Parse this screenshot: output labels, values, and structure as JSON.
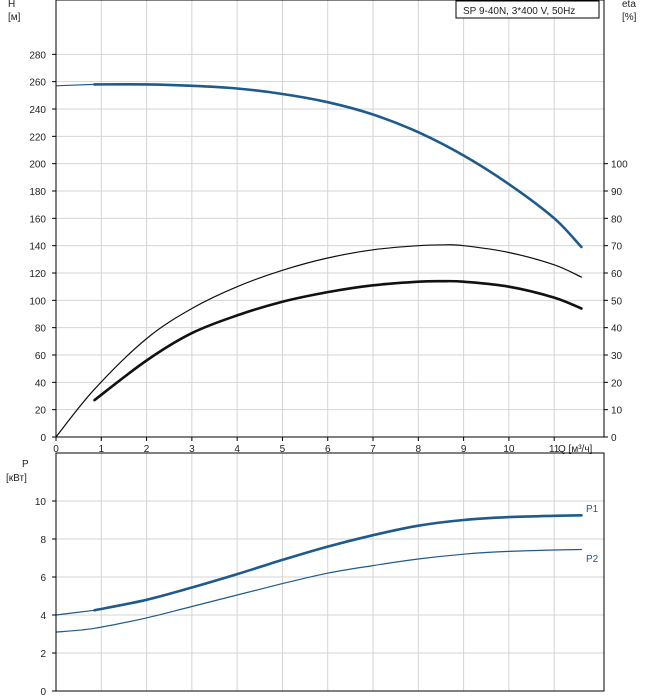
{
  "chart_data": [
    {
      "type": "line",
      "id": "head_efficiency",
      "title": "SP 9-40N, 3*400 V, 50Hz",
      "xlabel": "Q [м³/ч]",
      "ylabel": "H",
      "ylabel_unit": "[м]",
      "y2label": "eta",
      "y2label_unit": "[%]",
      "xlim": [
        0,
        12.1
      ],
      "ylim": [
        0,
        300
      ],
      "y2lim": [
        0,
        150
      ],
      "x_ticks": [
        0,
        1,
        2,
        3,
        4,
        5,
        6,
        7,
        8,
        9,
        10,
        11
      ],
      "y_ticks": [
        0,
        20,
        40,
        60,
        80,
        100,
        120,
        140,
        160,
        180,
        200,
        220,
        240,
        260,
        280
      ],
      "y2_ticks": [
        0,
        10,
        20,
        30,
        40,
        50,
        60,
        70,
        80,
        90,
        100
      ],
      "grid": true,
      "series": [
        {
          "key": "head_extension",
          "axis": "left",
          "color": "#1f5a8c",
          "line": "thin",
          "x": [
            0,
            0.85
          ],
          "y": [
            257,
            258
          ]
        },
        {
          "key": "head",
          "axis": "left",
          "color": "#1f5a8c",
          "line": "thick",
          "x": [
            0.85,
            2,
            3,
            4,
            5,
            6,
            7,
            8,
            9,
            10,
            11,
            11.6
          ],
          "y": [
            258,
            258,
            257,
            255,
            251,
            245,
            236,
            223,
            206,
            185,
            160,
            139
          ]
        },
        {
          "key": "efficiency_thin",
          "axis": "right",
          "color": "#111111",
          "line": "thin",
          "x": [
            0,
            0.85,
            2,
            3,
            4,
            5,
            6,
            7,
            8,
            8.6,
            9,
            10,
            11,
            11.6
          ],
          "y": [
            0,
            17.5,
            36,
            47,
            55,
            61,
            65.5,
            68.5,
            70,
            70.3,
            70,
            67.5,
            63,
            58.5
          ]
        },
        {
          "key": "efficiency",
          "axis": "right",
          "color": "#111111",
          "line": "thick",
          "x": [
            0.85,
            2,
            3,
            4,
            5,
            6,
            7,
            8,
            8.5,
            9,
            10,
            11,
            11.6
          ],
          "y": [
            13.5,
            28,
            38,
            44.5,
            49.5,
            53,
            55.5,
            56.8,
            57,
            56.8,
            55,
            51,
            47
          ]
        }
      ]
    },
    {
      "type": "line",
      "id": "power",
      "ylabel": "P",
      "ylabel_unit": "[кВт]",
      "xlim": [
        0,
        12.1
      ],
      "ylim": [
        0,
        12
      ],
      "y_ticks": [
        0,
        2,
        4,
        6,
        8,
        10
      ],
      "grid": true,
      "series": [
        {
          "name": "P1",
          "color": "#1f5a8c",
          "line": "thick",
          "x": [
            0.85,
            2,
            3,
            4,
            5,
            6,
            7,
            8,
            9,
            10,
            11,
            11.6
          ],
          "y": [
            4.25,
            4.8,
            5.45,
            6.15,
            6.9,
            7.6,
            8.2,
            8.7,
            9.0,
            9.15,
            9.22,
            9.25
          ]
        },
        {
          "key": "P1_extension",
          "color": "#1f5a8c",
          "line": "thin",
          "x": [
            0,
            0.85
          ],
          "y": [
            4.0,
            4.25
          ]
        },
        {
          "name": "P2",
          "color": "#1f5a8c",
          "line": "thin",
          "x": [
            0,
            0.85,
            2,
            3,
            4,
            5,
            6,
            7,
            8,
            9,
            10,
            11,
            11.6
          ],
          "y": [
            3.1,
            3.3,
            3.85,
            4.45,
            5.05,
            5.65,
            6.2,
            6.6,
            6.95,
            7.2,
            7.35,
            7.42,
            7.45
          ]
        }
      ]
    }
  ]
}
